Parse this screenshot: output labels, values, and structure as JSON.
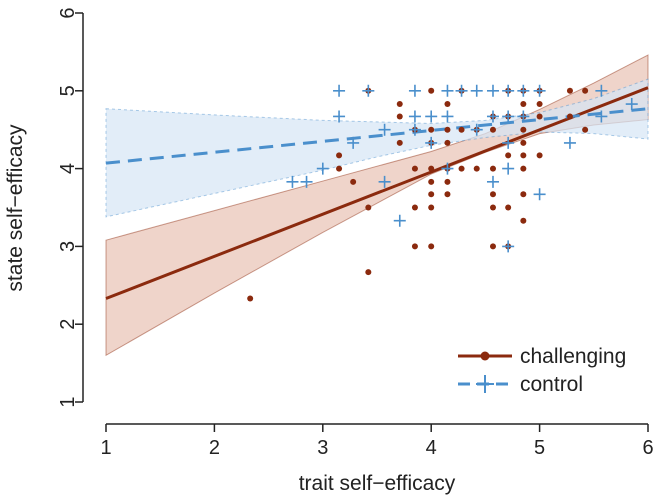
{
  "chart_data": {
    "type": "scatter",
    "xlabel": "trait self−efficacy",
    "ylabel": "state self−efficacy",
    "xlim": [
      1,
      6
    ],
    "ylim": [
      1,
      6
    ],
    "x_ticks": [
      "1",
      "2",
      "3",
      "4",
      "5",
      "6"
    ],
    "y_ticks": [
      "1",
      "2",
      "3",
      "4",
      "5",
      "6"
    ],
    "legend_position": "bottom-right",
    "series": [
      {
        "name": "challenging",
        "color": "#8b2a0e",
        "band_color": "#e9c5b8",
        "marker": "dot",
        "line_style": "solid",
        "fit": {
          "x": [
            1,
            6
          ],
          "y": [
            2.33,
            5.04
          ]
        },
        "band_upper": [
          [
            1,
            3.08
          ],
          [
            2,
            3.46
          ],
          [
            3,
            3.84
          ],
          [
            4,
            4.22
          ],
          [
            4.5,
            4.45
          ],
          [
            5,
            4.76
          ],
          [
            5.5,
            5.1
          ],
          [
            6,
            5.46
          ]
        ],
        "band_lower": [
          [
            1,
            1.6
          ],
          [
            2,
            2.4
          ],
          [
            3,
            3.18
          ],
          [
            4,
            3.93
          ],
          [
            4.5,
            4.21
          ],
          [
            5,
            4.45
          ],
          [
            5.5,
            4.56
          ],
          [
            6,
            4.63
          ]
        ],
        "points": [
          [
            2.33,
            2.33
          ],
          [
            3.15,
            4.17
          ],
          [
            3.15,
            4.0
          ],
          [
            3.28,
            3.83
          ],
          [
            3.42,
            5.0
          ],
          [
            3.42,
            3.5
          ],
          [
            3.42,
            2.67
          ],
          [
            3.71,
            4.83
          ],
          [
            3.71,
            4.67
          ],
          [
            3.71,
            4.33
          ],
          [
            3.85,
            4.5
          ],
          [
            3.85,
            4.0
          ],
          [
            3.85,
            3.5
          ],
          [
            3.85,
            3.0
          ],
          [
            4.0,
            5.0
          ],
          [
            4.0,
            4.5
          ],
          [
            4.0,
            4.33
          ],
          [
            4.0,
            4.0
          ],
          [
            4.0,
            3.83
          ],
          [
            4.0,
            3.67
          ],
          [
            4.0,
            3.5
          ],
          [
            4.0,
            3.0
          ],
          [
            4.15,
            4.83
          ],
          [
            4.15,
            4.5
          ],
          [
            4.15,
            4.33
          ],
          [
            4.15,
            4.0
          ],
          [
            4.15,
            3.83
          ],
          [
            4.15,
            3.67
          ],
          [
            4.28,
            5.0
          ],
          [
            4.28,
            4.5
          ],
          [
            4.28,
            4.0
          ],
          [
            4.42,
            4.5
          ],
          [
            4.42,
            4.0
          ],
          [
            4.57,
            4.67
          ],
          [
            4.57,
            4.5
          ],
          [
            4.57,
            4.0
          ],
          [
            4.57,
            3.67
          ],
          [
            4.57,
            3.5
          ],
          [
            4.57,
            3.0
          ],
          [
            4.71,
            5.0
          ],
          [
            4.71,
            4.67
          ],
          [
            4.71,
            4.17
          ],
          [
            4.71,
            3.5
          ],
          [
            4.71,
            3.0
          ],
          [
            4.85,
            5.0
          ],
          [
            4.85,
            4.83
          ],
          [
            4.85,
            4.67
          ],
          [
            4.85,
            4.5
          ],
          [
            4.85,
            4.33
          ],
          [
            4.85,
            4.17
          ],
          [
            4.85,
            4.0
          ],
          [
            4.85,
            3.67
          ],
          [
            4.85,
            3.33
          ],
          [
            5.0,
            5.0
          ],
          [
            5.0,
            4.83
          ],
          [
            5.0,
            4.67
          ],
          [
            5.0,
            4.17
          ],
          [
            5.28,
            5.0
          ],
          [
            5.28,
            4.67
          ],
          [
            5.42,
            5.0
          ],
          [
            5.42,
            4.5
          ]
        ]
      },
      {
        "name": "control",
        "color": "#4a8fcc",
        "band_color": "#d6e6f5",
        "marker": "plus",
        "line_style": "dashed",
        "fit": {
          "x": [
            1,
            6
          ],
          "y": [
            4.07,
            4.77
          ]
        },
        "band_upper": [
          [
            1,
            4.77
          ],
          [
            2,
            4.69
          ],
          [
            3,
            4.62
          ],
          [
            3.5,
            4.6
          ],
          [
            4,
            4.58
          ],
          [
            4.5,
            4.62
          ],
          [
            5,
            4.72
          ],
          [
            5.5,
            4.9
          ],
          [
            6,
            5.15
          ]
        ],
        "band_lower": [
          [
            1,
            3.38
          ],
          [
            2,
            3.68
          ],
          [
            3,
            3.98
          ],
          [
            3.5,
            4.15
          ],
          [
            4,
            4.3
          ],
          [
            4.5,
            4.4
          ],
          [
            5,
            4.47
          ],
          [
            5.5,
            4.45
          ],
          [
            6,
            4.38
          ]
        ],
        "points": [
          [
            2.72,
            3.83
          ],
          [
            2.85,
            3.83
          ],
          [
            3.0,
            4.0
          ],
          [
            3.15,
            5.0
          ],
          [
            3.15,
            4.67
          ],
          [
            3.28,
            4.33
          ],
          [
            3.42,
            5.0
          ],
          [
            3.57,
            4.5
          ],
          [
            3.57,
            3.83
          ],
          [
            3.71,
            3.33
          ],
          [
            3.85,
            5.0
          ],
          [
            3.85,
            4.67
          ],
          [
            3.85,
            4.5
          ],
          [
            4.0,
            4.67
          ],
          [
            4.0,
            4.33
          ],
          [
            4.15,
            5.0
          ],
          [
            4.15,
            4.67
          ],
          [
            4.15,
            4.0
          ],
          [
            4.28,
            5.0
          ],
          [
            4.42,
            5.0
          ],
          [
            4.42,
            4.5
          ],
          [
            4.57,
            5.0
          ],
          [
            4.57,
            4.67
          ],
          [
            4.57,
            3.83
          ],
          [
            4.71,
            5.0
          ],
          [
            4.71,
            4.67
          ],
          [
            4.71,
            4.33
          ],
          [
            4.71,
            4.0
          ],
          [
            4.71,
            3.0
          ],
          [
            4.85,
            5.0
          ],
          [
            4.85,
            4.67
          ],
          [
            5.0,
            5.0
          ],
          [
            5.0,
            3.67
          ],
          [
            5.28,
            4.33
          ],
          [
            5.57,
            5.0
          ],
          [
            5.57,
            4.67
          ],
          [
            5.85,
            4.83
          ]
        ]
      }
    ]
  }
}
